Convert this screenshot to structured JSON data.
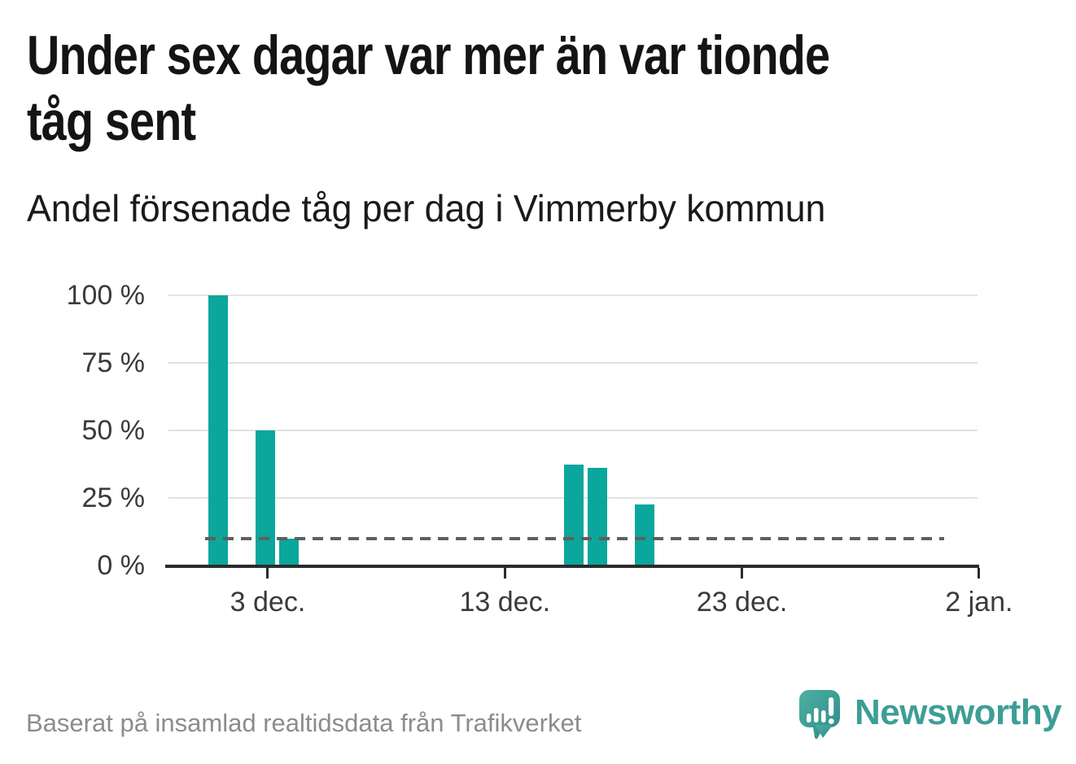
{
  "title": "Under sex dagar var mer än var tionde\ntåg sent",
  "subtitle": "Andel försenade tåg per dag i Vimmerby kommun",
  "footer": {
    "source_text": "Baserat på insamlad realtidsdata från Trafikverket",
    "brand": "Newsworthy"
  },
  "colors": {
    "bar": "#0ba69c",
    "grid": "#e2e2e2",
    "axis": "#2b2b2b",
    "reference_line": "#5f5f5f",
    "text": "#3a3a3a",
    "brand_teal": "#3d9e96"
  },
  "chart_data": {
    "type": "bar",
    "title": "Under sex dagar var mer än var tionde tåg sent",
    "subtitle": "Andel försenade tåg per dag i Vimmerby kommun",
    "unit": "%",
    "ylim": [
      0,
      100
    ],
    "grid": true,
    "y_ticks": [
      {
        "value": 0,
        "label": "0 %"
      },
      {
        "value": 25,
        "label": "25 %"
      },
      {
        "value": 50,
        "label": "50 %"
      },
      {
        "value": 75,
        "label": "75 %"
      },
      {
        "value": 100,
        "label": "100 %"
      }
    ],
    "x_ticks": [
      {
        "day": 2,
        "label": "3 dec."
      },
      {
        "day": 12,
        "label": "13 dec."
      },
      {
        "day": 22,
        "label": "23 dec."
      },
      {
        "day": 32,
        "label": "2 jan."
      }
    ],
    "bars": [
      {
        "date": "1 dec",
        "day": 0,
        "value": 100
      },
      {
        "date": "3 dec",
        "day": 2,
        "value": 50
      },
      {
        "date": "4 dec",
        "day": 3,
        "value": 10
      },
      {
        "date": "16 dec",
        "day": 15,
        "value": 37.5
      },
      {
        "date": "17 dec",
        "day": 16,
        "value": 36
      },
      {
        "date": "19 dec",
        "day": 18,
        "value": 22.5
      }
    ],
    "reference_line": {
      "value": 10,
      "style": "dashed",
      "meaning": "var tionde tåg (10 %)"
    }
  }
}
